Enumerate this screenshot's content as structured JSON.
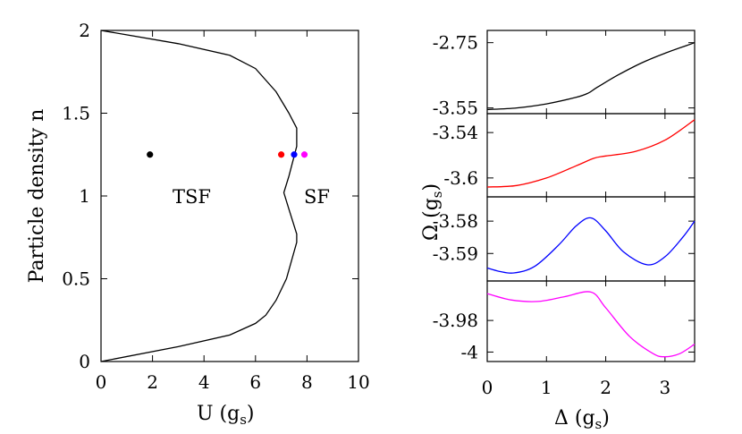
{
  "chart_data": [
    {
      "type": "line",
      "xlabel": "U (g",
      "xlabel_sub": "s",
      "xlabel_close": ")",
      "ylabel": "Particle density n",
      "xlim": [
        0,
        10
      ],
      "ylim": [
        0,
        2
      ],
      "xticks": [
        "0",
        "2",
        "4",
        "6",
        "8",
        "10"
      ],
      "yticks": [
        "0",
        "0.5",
        "1",
        "1.5",
        "2"
      ],
      "grid": false,
      "series": [
        {
          "color": "#000000",
          "points": [
            [
              0,
              2
            ],
            [
              3,
              1.92
            ],
            [
              5,
              1.85
            ],
            [
              6,
              1.77
            ],
            [
              6.8,
              1.63
            ],
            [
              7.3,
              1.5
            ],
            [
              7.6,
              1.41
            ],
            [
              7.6,
              1.3
            ],
            [
              7.3,
              1.12
            ],
            [
              7.1,
              1.02
            ],
            [
              7.3,
              0.92
            ],
            [
              7.6,
              0.77
            ],
            [
              7.6,
              0.72
            ],
            [
              7.2,
              0.5
            ],
            [
              6.8,
              0.37
            ],
            [
              6.4,
              0.28
            ],
            [
              6.0,
              0.23
            ],
            [
              5.0,
              0.16
            ],
            [
              3.0,
              0.09
            ],
            [
              0,
              0
            ]
          ]
        }
      ],
      "region_labels": [
        "TSF",
        "SF"
      ],
      "points": [
        {
          "x": 1.9,
          "y": 1.25,
          "color": "#000000"
        },
        {
          "x": 7.0,
          "y": 1.25,
          "color": "#ff0000"
        },
        {
          "x": 7.5,
          "y": 1.25,
          "color": "#0000ff"
        },
        {
          "x": 7.9,
          "y": 1.25,
          "color": "#ff00ff"
        }
      ]
    },
    {
      "type": "line",
      "xlabel": "Δ (g",
      "xlabel_sub": "s",
      "xlabel_close": ")",
      "ylabel": "Ω (g",
      "ylabel_sub": "s",
      "ylabel_close": ")",
      "xlim": [
        0,
        3.5
      ],
      "xticks": [
        "0",
        "1",
        "2",
        "3"
      ],
      "panels": [
        {
          "color": "#000000",
          "ylim": [
            -3.62,
            -2.6
          ],
          "yticks": [
            "-2.75",
            "-3.55"
          ],
          "x": [
            0,
            0.5,
            1,
            1.5,
            1.7,
            1.85,
            2.2,
            2.6,
            3,
            3.5
          ],
          "y": [
            -3.57,
            -3.55,
            -3.5,
            -3.42,
            -3.37,
            -3.3,
            -3.15,
            -3.0,
            -2.88,
            -2.75
          ]
        },
        {
          "color": "#ff0000",
          "ylim": [
            -3.625,
            -3.515
          ],
          "yticks": [
            "-3.54",
            "-3.6"
          ],
          "x": [
            0,
            0.5,
            1,
            1.5,
            1.8,
            2,
            2.5,
            3,
            3.5
          ],
          "y": [
            -3.612,
            -3.61,
            -3.6,
            -3.584,
            -3.574,
            -3.571,
            -3.565,
            -3.55,
            -3.523
          ]
        },
        {
          "color": "#0000ff",
          "ylim": [
            -3.5985,
            -3.5725
          ],
          "yticks": [
            "-3.58",
            "-3.59"
          ],
          "x": [
            0,
            0.2,
            0.45,
            0.8,
            1.2,
            1.5,
            1.75,
            2,
            2.3,
            2.7,
            3,
            3.3,
            3.5
          ],
          "y": [
            -3.5945,
            -3.5955,
            -3.596,
            -3.594,
            -3.5875,
            -3.5815,
            -3.579,
            -3.583,
            -3.5895,
            -3.5935,
            -3.591,
            -3.585,
            -3.58
          ]
        },
        {
          "color": "#ff00ff",
          "ylim": [
            -4.006,
            -3.955
          ],
          "yticks": [
            "-3.98",
            "-4"
          ],
          "x": [
            0,
            0.4,
            0.85,
            1.3,
            1.75,
            2,
            2.4,
            2.8,
            3,
            3.25,
            3.5
          ],
          "y": [
            -3.963,
            -3.967,
            -3.968,
            -3.965,
            -3.962,
            -3.972,
            -3.99,
            -4.001,
            -4.003,
            -4.001,
            -3.995
          ]
        }
      ]
    }
  ]
}
